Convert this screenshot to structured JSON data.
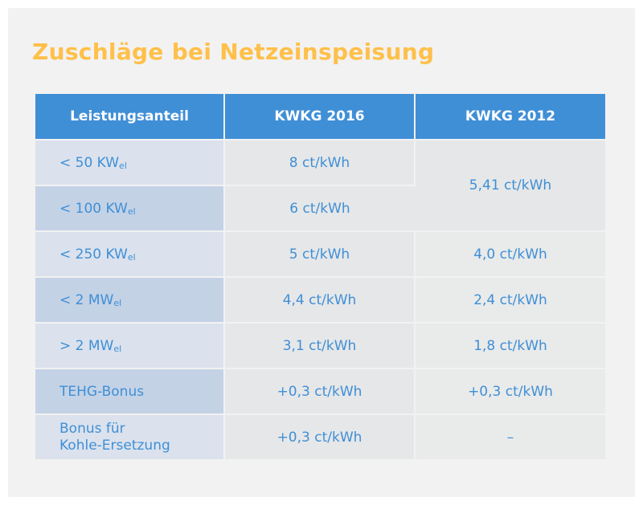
{
  "title": "Zuschläge bei Netzeinspeisung",
  "headers": {
    "col1": "Leistungsanteil",
    "col2": "KWKG 2016",
    "col3": "KWKG 2012"
  },
  "rows": [
    {
      "label": "< 50 KW",
      "sub": "el",
      "kwkg2016": "8 ct/kWh"
    },
    {
      "label": "< 100 KW",
      "sub": "el",
      "kwkg2016": "6 ct/kWh"
    },
    {
      "label": "< 250 KW",
      "sub": "el",
      "kwkg2016": "5 ct/kWh",
      "kwkg2012": "4,0 ct/kWh"
    },
    {
      "label": "< 2 MW",
      "sub": "el",
      "kwkg2016": "4,4 ct/kWh",
      "kwkg2012": "2,4 ct/kWh"
    },
    {
      "label": "> 2 MW",
      "sub": "el",
      "kwkg2016": "3,1 ct/kWh",
      "kwkg2012": "1,8 ct/kWh"
    },
    {
      "label": "TEHG-Bonus",
      "kwkg2016": "+0,3 ct/kWh",
      "kwkg2012": "+0,3 ct/kWh"
    },
    {
      "label_line1": "Bonus für",
      "label_line2": "Kohle-Ersetzung",
      "kwkg2016": "+0,3 ct/kWh",
      "kwkg2012": "–"
    }
  ],
  "merged_kwkg2012_rows_1_2": "5,41 ct/kWh",
  "colors": {
    "title": "#ffc04a",
    "header_bg": "#3f8fd6",
    "text": "#3f8fd6",
    "label_light": "#dbe2ed",
    "label_dark": "#c4d2e6",
    "value_bg": "#e6e7e8",
    "panel_bg": "#f2f2f2"
  }
}
